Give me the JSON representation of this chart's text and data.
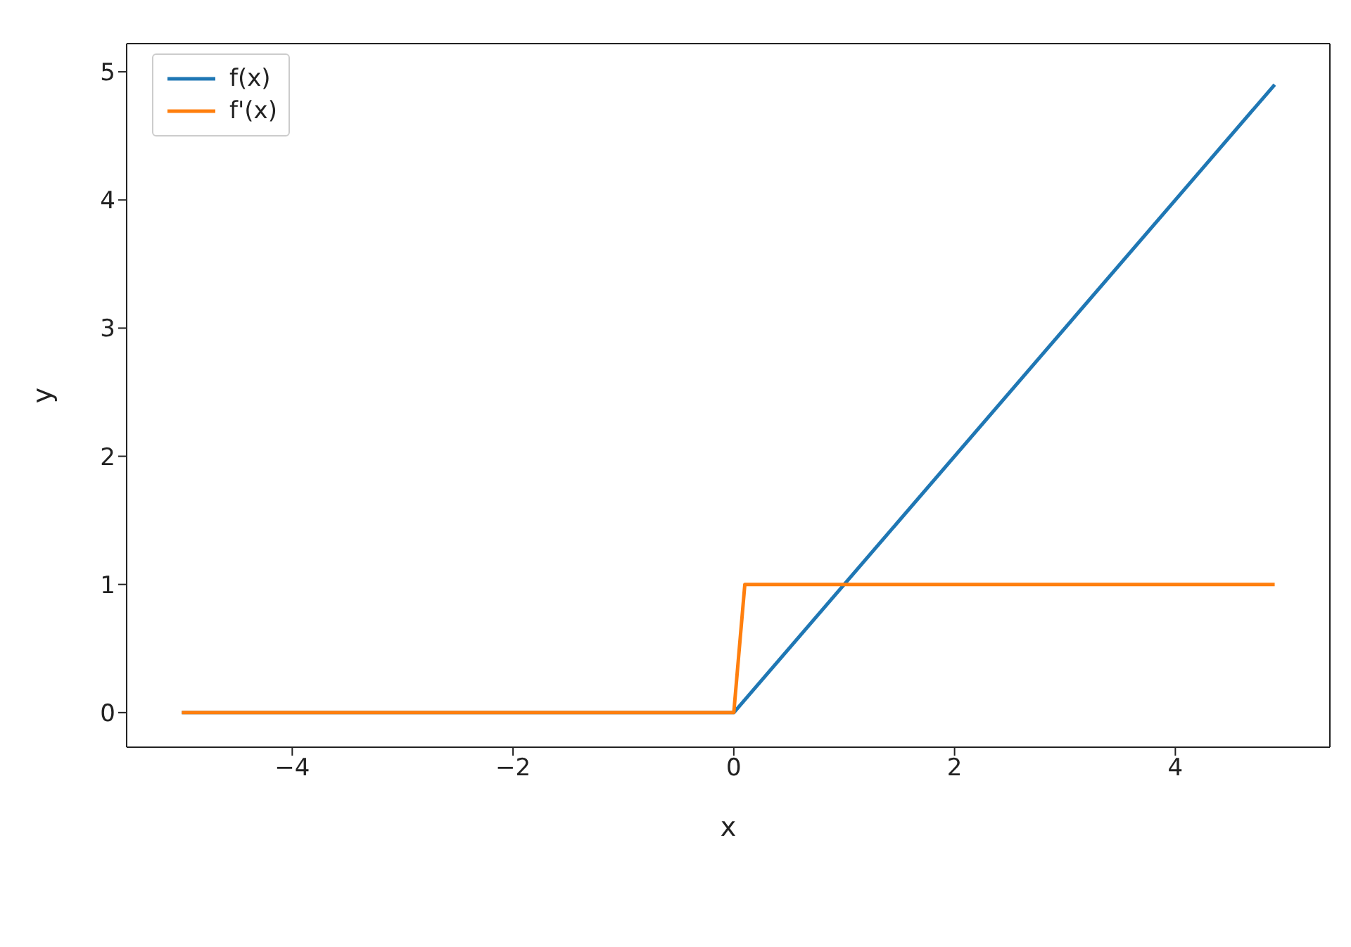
{
  "chart_data": {
    "type": "line",
    "xlabel": "x",
    "ylabel": "y",
    "xlim": [
      -5.5,
      5.4
    ],
    "ylim": [
      -0.27,
      5.22
    ],
    "xticks": [
      {
        "value": -4,
        "label": "−4"
      },
      {
        "value": -2,
        "label": "−2"
      },
      0,
      2,
      4
    ],
    "yticks": [
      0,
      1,
      2,
      3,
      4,
      5
    ],
    "grid": false,
    "legend": "top left",
    "marker": "none",
    "line_style": "solid",
    "series": [
      {
        "name": "f(x)",
        "color": "#1f77b4",
        "x": [
          -5,
          0,
          4.9
        ],
        "values": [
          0,
          0,
          4.9
        ]
      },
      {
        "name": "f'(x)",
        "color": "#ff7f0e",
        "x": [
          -5,
          0,
          0.1,
          4.9
        ],
        "values": [
          0,
          0,
          1,
          1
        ]
      }
    ]
  }
}
